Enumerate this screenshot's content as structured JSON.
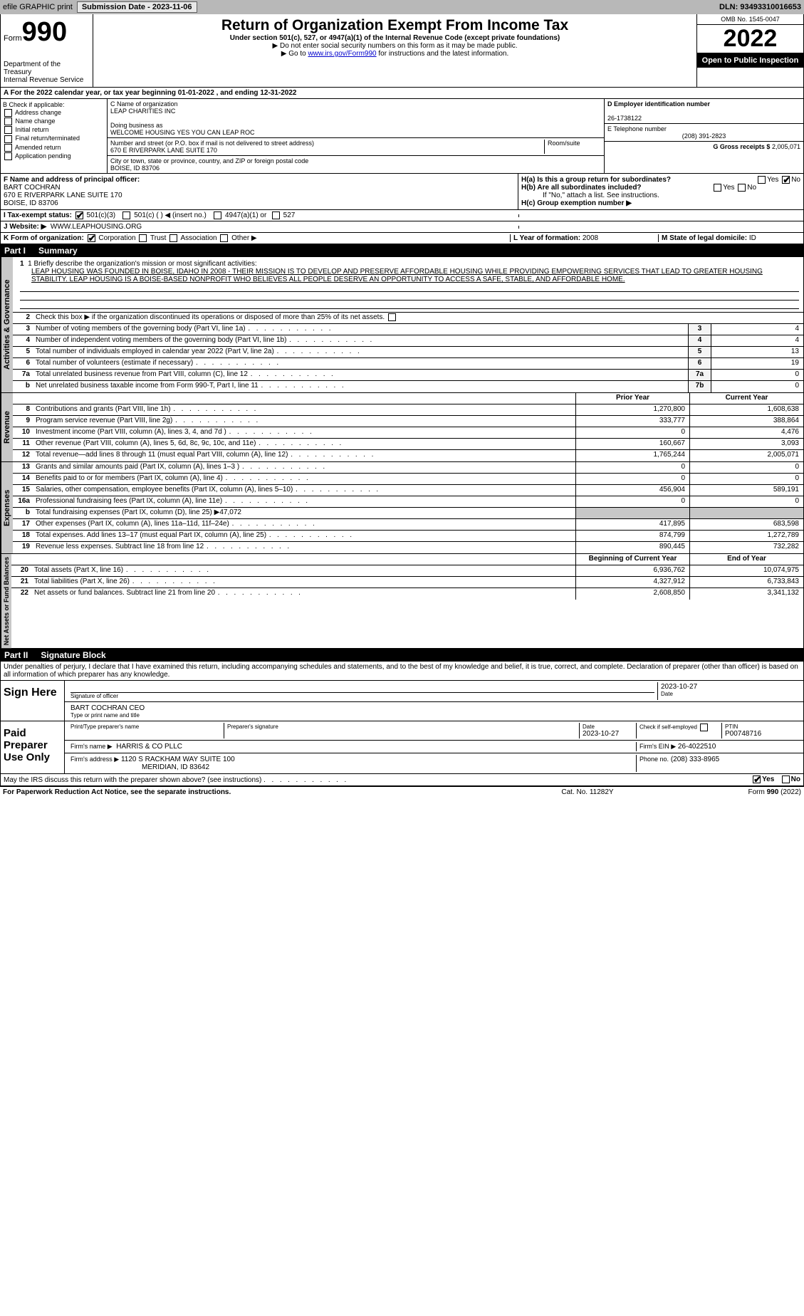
{
  "topbar": {
    "efile_label": "efile GRAPHIC print",
    "submission_label": "Submission Date - 2023-11-06",
    "dln_label": "DLN: 93493310016653"
  },
  "header": {
    "form_label": "Form",
    "form_number": "990",
    "dept": "Department of the Treasury",
    "irs": "Internal Revenue Service",
    "title": "Return of Organization Exempt From Income Tax",
    "subtitle": "Under section 501(c), 527, or 4947(a)(1) of the Internal Revenue Code (except private foundations)",
    "note1": "▶ Do not enter social security numbers on this form as it may be made public.",
    "note2_pre": "▶ Go to ",
    "note2_link": "www.irs.gov/Form990",
    "note2_post": " for instructions and the latest information.",
    "omb": "OMB No. 1545-0047",
    "year": "2022",
    "open": "Open to Public Inspection"
  },
  "line_a": "A For the 2022 calendar year, or tax year beginning 01-01-2022     , and ending 12-31-2022",
  "box_b": {
    "title": "B Check if applicable:",
    "items": [
      "Address change",
      "Name change",
      "Initial return",
      "Final return/terminated",
      "Amended return",
      "Application pending"
    ]
  },
  "box_c": {
    "name_label": "C Name of organization",
    "name": "LEAP CHARITIES INC",
    "dba_label": "Doing business as",
    "dba": "WELCOME HOUSING YES YOU CAN LEAP ROC",
    "addr_label": "Number and street (or P.O. box if mail is not delivered to street address)",
    "room_label": "Room/suite",
    "addr": "670 E RIVERPARK LANE SUITE 170",
    "city_label": "City or town, state or province, country, and ZIP or foreign postal code",
    "city": "BOISE, ID  83706"
  },
  "box_d": {
    "ein_label": "D Employer identification number",
    "ein": "26-1738122",
    "phone_label": "E Telephone number",
    "phone": "(208) 391-2823",
    "gross_label": "G Gross receipts $",
    "gross": "2,005,071"
  },
  "box_f": {
    "label": "F Name and address of principal officer:",
    "name": "BART COCHRAN",
    "addr1": "670 E RIVERPARK LANE SUITE 170",
    "addr2": "BOISE, ID  83706"
  },
  "box_h": {
    "a_label": "H(a)  Is this a group return for subordinates?",
    "yes": "Yes",
    "no": "No",
    "b_label": "H(b)  Are all subordinates included?",
    "b_note": "If \"No,\" attach a list. See instructions.",
    "c_label": "H(c)  Group exemption number ▶"
  },
  "line_i": {
    "label": "I   Tax-exempt status:",
    "opt1": "501(c)(3)",
    "opt2": "501(c) (   ) ◀ (insert no.)",
    "opt3": "4947(a)(1) or",
    "opt4": "527"
  },
  "line_j": {
    "label": "J   Website: ▶",
    "value": "WWW.LEAPHOUSING.ORG"
  },
  "line_k": {
    "label": "K Form of organization:",
    "opts": [
      "Corporation",
      "Trust",
      "Association",
      "Other ▶"
    ]
  },
  "line_l": {
    "label": "L Year of formation:",
    "value": "2008"
  },
  "line_m": {
    "label": "M State of legal domicile:",
    "value": "ID"
  },
  "part1": {
    "pt": "Part I",
    "title": "Summary"
  },
  "mission": {
    "q1_label": "1  Briefly describe the organization's mission or most significant activities:",
    "text": "LEAP HOUSING WAS FOUNDED IN BOISE, IDAHO IN 2008 - THEIR MISSION IS TO DEVELOP AND PRESERVE AFFORDABLE HOUSING WHILE PROVIDING EMPOWERING SERVICES THAT LEAD TO GREATER HOUSING STABILITY. LEAP HOUSING IS A BOISE-BASED NONPROFIT WHO BELIEVES ALL PEOPLE DESERVE AN OPPORTUNITY TO ACCESS A SAFE, STABLE, AND AFFORDABLE HOME."
  },
  "governance": {
    "side": "Activities & Governance",
    "q2": "Check this box ▶      if the organization discontinued its operations or disposed of more than 25% of its net assets.",
    "rows": [
      {
        "n": "3",
        "d": "Number of voting members of the governing body (Part VI, line 1a)",
        "box": "3",
        "v": "4"
      },
      {
        "n": "4",
        "d": "Number of independent voting members of the governing body (Part VI, line 1b)",
        "box": "4",
        "v": "4"
      },
      {
        "n": "5",
        "d": "Total number of individuals employed in calendar year 2022 (Part V, line 2a)",
        "box": "5",
        "v": "13"
      },
      {
        "n": "6",
        "d": "Total number of volunteers (estimate if necessary)",
        "box": "6",
        "v": "19"
      },
      {
        "n": "7a",
        "d": "Total unrelated business revenue from Part VIII, column (C), line 12",
        "box": "7a",
        "v": "0"
      },
      {
        "n": "b",
        "d": "Net unrelated business taxable income from Form 990-T, Part I, line 11",
        "box": "7b",
        "v": "0"
      }
    ]
  },
  "revenue": {
    "side": "Revenue",
    "header_prior": "Prior Year",
    "header_current": "Current Year",
    "rows": [
      {
        "n": "8",
        "d": "Contributions and grants (Part VIII, line 1h)",
        "p": "1,270,800",
        "c": "1,608,638"
      },
      {
        "n": "9",
        "d": "Program service revenue (Part VIII, line 2g)",
        "p": "333,777",
        "c": "388,864"
      },
      {
        "n": "10",
        "d": "Investment income (Part VIII, column (A), lines 3, 4, and 7d )",
        "p": "0",
        "c": "4,476"
      },
      {
        "n": "11",
        "d": "Other revenue (Part VIII, column (A), lines 5, 6d, 8c, 9c, 10c, and 11e)",
        "p": "160,667",
        "c": "3,093"
      },
      {
        "n": "12",
        "d": "Total revenue—add lines 8 through 11 (must equal Part VIII, column (A), line 12)",
        "p": "1,765,244",
        "c": "2,005,071"
      }
    ]
  },
  "expenses": {
    "side": "Expenses",
    "rows": [
      {
        "n": "13",
        "d": "Grants and similar amounts paid (Part IX, column (A), lines 1–3 )",
        "p": "0",
        "c": "0"
      },
      {
        "n": "14",
        "d": "Benefits paid to or for members (Part IX, column (A), line 4)",
        "p": "0",
        "c": "0"
      },
      {
        "n": "15",
        "d": "Salaries, other compensation, employee benefits (Part IX, column (A), lines 5–10)",
        "p": "456,904",
        "c": "589,191"
      },
      {
        "n": "16a",
        "d": "Professional fundraising fees (Part IX, column (A), line 11e)",
        "p": "0",
        "c": "0"
      },
      {
        "n": "b",
        "d": "Total fundraising expenses (Part IX, column (D), line 25) ▶47,072",
        "p": "",
        "c": "",
        "grey": true
      },
      {
        "n": "17",
        "d": "Other expenses (Part IX, column (A), lines 11a–11d, 11f–24e)",
        "p": "417,895",
        "c": "683,598"
      },
      {
        "n": "18",
        "d": "Total expenses. Add lines 13–17 (must equal Part IX, column (A), line 25)",
        "p": "874,799",
        "c": "1,272,789"
      },
      {
        "n": "19",
        "d": "Revenue less expenses. Subtract line 18 from line 12",
        "p": "890,445",
        "c": "732,282"
      }
    ]
  },
  "netassets": {
    "side": "Net Assets or Fund Balances",
    "header_begin": "Beginning of Current Year",
    "header_end": "End of Year",
    "rows": [
      {
        "n": "20",
        "d": "Total assets (Part X, line 16)",
        "p": "6,936,762",
        "c": "10,074,975"
      },
      {
        "n": "21",
        "d": "Total liabilities (Part X, line 26)",
        "p": "4,327,912",
        "c": "6,733,843"
      },
      {
        "n": "22",
        "d": "Net assets or fund balances. Subtract line 21 from line 20",
        "p": "2,608,850",
        "c": "3,341,132"
      }
    ]
  },
  "part2": {
    "pt": "Part II",
    "title": "Signature Block"
  },
  "jurat": "Under penalties of perjury, I declare that I have examined this return, including accompanying schedules and statements, and to the best of my knowledge and belief, it is true, correct, and complete. Declaration of preparer (other than officer) is based on all information of which preparer has any knowledge.",
  "sign": {
    "label": "Sign Here",
    "sig_label": "Signature of officer",
    "date": "2023-10-27",
    "date_label": "Date",
    "name": "BART COCHRAN  CEO",
    "name_label": "Type or print name and title"
  },
  "preparer": {
    "label": "Paid Preparer Use Only",
    "print_label": "Print/Type preparer's name",
    "sig_label": "Preparer's signature",
    "date_label": "Date",
    "date": "2023-10-27",
    "check_label": "Check         if self-employed",
    "ptin_label": "PTIN",
    "ptin": "P00748716",
    "firm_label": "Firm's name    ▶",
    "firm": "HARRIS & CO PLLC",
    "ein_label": "Firm's EIN ▶",
    "ein": "26-4022510",
    "addr_label": "Firm's address ▶",
    "addr1": "1120 S RACKHAM WAY SUITE 100",
    "addr2": "MERIDIAN, ID  83642",
    "phone_label": "Phone no.",
    "phone": "(208) 333-8965"
  },
  "discuss": {
    "q": "May the IRS discuss this return with the preparer shown above? (see instructions)",
    "yes": "Yes",
    "no": "No"
  },
  "footer": {
    "l": "For Paperwork Reduction Act Notice, see the separate instructions.",
    "c": "Cat. No. 11282Y",
    "r": "Form 990 (2022)"
  }
}
